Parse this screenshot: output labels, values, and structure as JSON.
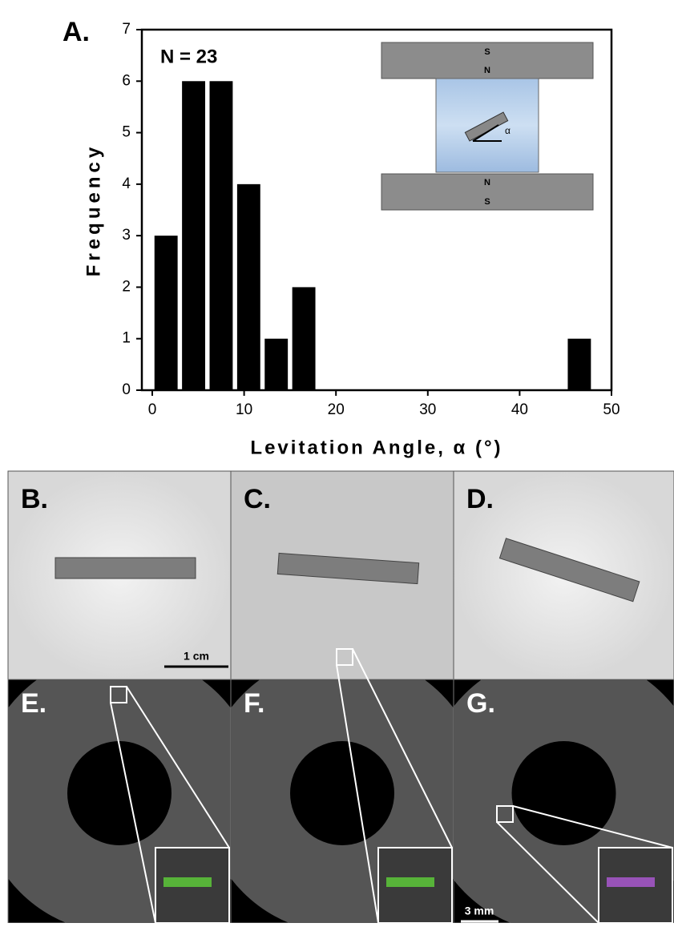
{
  "chart_data": {
    "type": "histogram",
    "annotation": "N = 23",
    "x_label": "Levitation Angle, α (°)",
    "y_label": "Frequency",
    "bins": [
      0,
      3,
      6,
      9,
      12,
      15,
      18,
      21,
      24,
      27,
      30,
      33,
      36,
      39,
      42,
      45,
      48
    ],
    "values": [
      3,
      6,
      6,
      4,
      1,
      2,
      0,
      0,
      0,
      0,
      0,
      0,
      0,
      0,
      0,
      1
    ],
    "color": "#000000",
    "xlim": [
      0,
      50
    ],
    "xticks": [
      0,
      10,
      20,
      30,
      40,
      50
    ],
    "ylim": [
      0,
      7
    ],
    "yticks": [
      0,
      1,
      2,
      3,
      4,
      5,
      6,
      7
    ],
    "inset_labels": {
      "top_s": "S",
      "top_n": "N",
      "bottom_n": "N",
      "bottom_s": "S",
      "angle": "α"
    }
  },
  "panel_a_label": "A.",
  "panels": [
    "B.",
    "C.",
    "D.",
    "E.",
    "F.",
    "G."
  ],
  "scale_bars": [
    "1 cm",
    "3 mm"
  ]
}
